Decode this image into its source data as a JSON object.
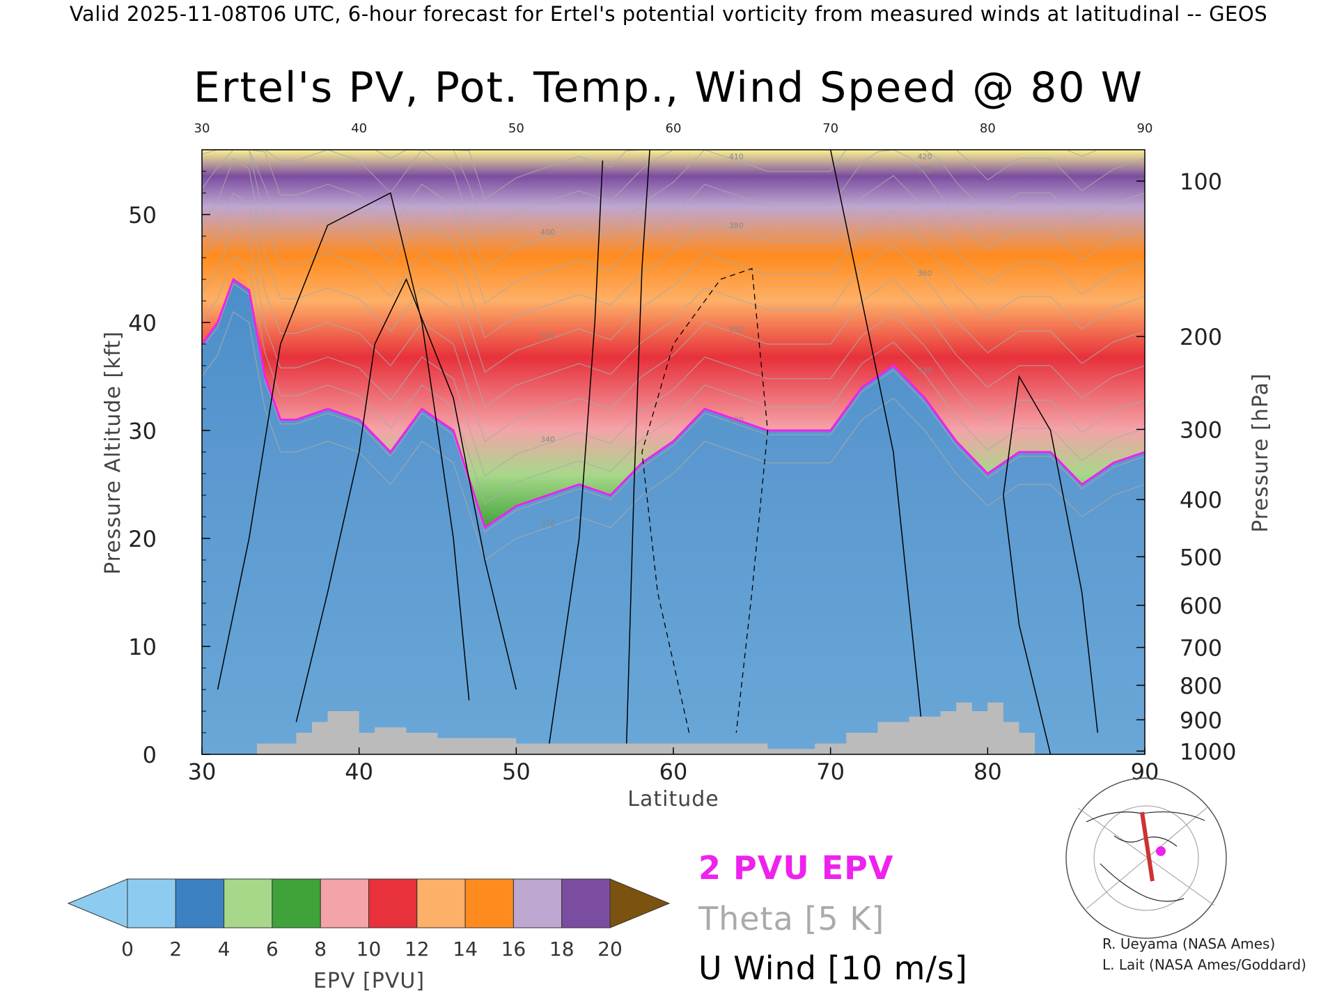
{
  "header": {
    "valid_line": "Valid 2025-11-08T06 UTC, 6-hour forecast for Ertel's potential vorticity from measured winds at latitudinal -- GEOS"
  },
  "chart_data": {
    "type": "heatmap",
    "title": "Ertel's PV, Pot. Temp., Wind Speed @ 80 W",
    "xlabel": "Latitude",
    "ylabel": "Pressure Altitude [kft]",
    "y2label": "Pressure [hPa]",
    "xlim": [
      30,
      90
    ],
    "ylim": [
      0,
      56
    ],
    "x_ticks": [
      30,
      40,
      50,
      60,
      70,
      80,
      90
    ],
    "y_ticks": [
      0,
      10,
      20,
      30,
      40,
      50
    ],
    "pressure_ticks": [
      {
        "label": "100",
        "kft": 53.1
      },
      {
        "label": "200",
        "kft": 38.7
      },
      {
        "label": "300",
        "kft": 30.1
      },
      {
        "label": "400",
        "kft": 23.6
      },
      {
        "label": "500",
        "kft": 18.3
      },
      {
        "label": "600",
        "kft": 13.8
      },
      {
        "label": "700",
        "kft": 9.9
      },
      {
        "label": "800",
        "kft": 6.4
      },
      {
        "label": "900",
        "kft": 3.2
      },
      {
        "label": "1000",
        "kft": 0.3
      }
    ],
    "tropopause_2pvu_kft": [
      [
        30,
        38
      ],
      [
        31,
        40
      ],
      [
        32,
        44
      ],
      [
        33,
        43
      ],
      [
        34,
        35
      ],
      [
        35,
        31
      ],
      [
        36,
        31
      ],
      [
        38,
        32
      ],
      [
        40,
        31
      ],
      [
        42,
        28
      ],
      [
        44,
        32
      ],
      [
        46,
        30
      ],
      [
        48,
        21
      ],
      [
        50,
        23
      ],
      [
        52,
        24
      ],
      [
        54,
        25
      ],
      [
        56,
        24
      ],
      [
        58,
        27
      ],
      [
        60,
        29
      ],
      [
        62,
        32
      ],
      [
        64,
        31
      ],
      [
        66,
        30
      ],
      [
        68,
        30
      ],
      [
        70,
        30
      ],
      [
        72,
        34
      ],
      [
        74,
        36
      ],
      [
        76,
        33
      ],
      [
        78,
        29
      ],
      [
        80,
        26
      ],
      [
        82,
        28
      ],
      [
        84,
        28
      ],
      [
        86,
        25
      ],
      [
        88,
        27
      ],
      [
        90,
        28
      ]
    ],
    "surface_terrain_kft": [
      [
        30,
        0
      ],
      [
        33.5,
        0
      ],
      [
        33.5,
        1
      ],
      [
        36,
        1
      ],
      [
        36,
        2
      ],
      [
        37,
        2
      ],
      [
        37,
        3
      ],
      [
        38,
        3
      ],
      [
        38,
        4
      ],
      [
        40,
        4
      ],
      [
        40,
        2
      ],
      [
        41,
        2
      ],
      [
        41,
        2.5
      ],
      [
        43,
        2.5
      ],
      [
        43,
        2
      ],
      [
        45,
        2
      ],
      [
        45,
        1.5
      ],
      [
        50,
        1.5
      ],
      [
        50,
        1
      ],
      [
        66,
        1
      ],
      [
        66,
        0.5
      ],
      [
        69,
        0.5
      ],
      [
        69,
        1
      ],
      [
        71,
        1
      ],
      [
        71,
        2
      ],
      [
        73,
        2
      ],
      [
        73,
        3
      ],
      [
        75,
        3
      ],
      [
        75,
        3.5
      ],
      [
        77,
        3.5
      ],
      [
        77,
        4
      ],
      [
        78,
        4
      ],
      [
        78,
        4.8
      ],
      [
        79,
        4.8
      ],
      [
        79,
        4
      ],
      [
        80,
        4
      ],
      [
        80,
        4.8
      ],
      [
        81,
        4.8
      ],
      [
        81,
        3
      ],
      [
        82,
        3
      ],
      [
        82,
        2
      ],
      [
        83,
        2
      ],
      [
        83,
        0
      ],
      [
        90,
        0
      ]
    ],
    "theta_contour_labels": [
      "310",
      "320",
      "330",
      "340",
      "350",
      "360",
      "370",
      "380",
      "390",
      "400",
      "410",
      "420"
    ],
    "colorbar": {
      "label": "EPV [PVU]",
      "ticks": [
        0,
        2,
        4,
        6,
        8,
        10,
        12,
        14,
        16,
        18,
        20
      ],
      "colors": [
        "#8ecbf1",
        "#3c82c2",
        "#a7d88a",
        "#3fa33a",
        "#f4a3a8",
        "#e7313b",
        "#fdb067",
        "#ff8b1f",
        "#bea7d1",
        "#7b4da0",
        "#fbf391"
      ],
      "under_color": "#8ecbf1",
      "over_color": "#7b5210"
    },
    "legend": {
      "epv": "2 PVU EPV",
      "theta": "Theta [5 K]",
      "wind": "U Wind [10 m/s]",
      "epv_color": "#ee22ee",
      "theta_color": "#aaaaaa",
      "wind_color": "#000000"
    }
  },
  "credits": {
    "line1": "R. Ueyama (NASA Ames)",
    "line2": "L. Lait (NASA Ames/Goddard)"
  }
}
